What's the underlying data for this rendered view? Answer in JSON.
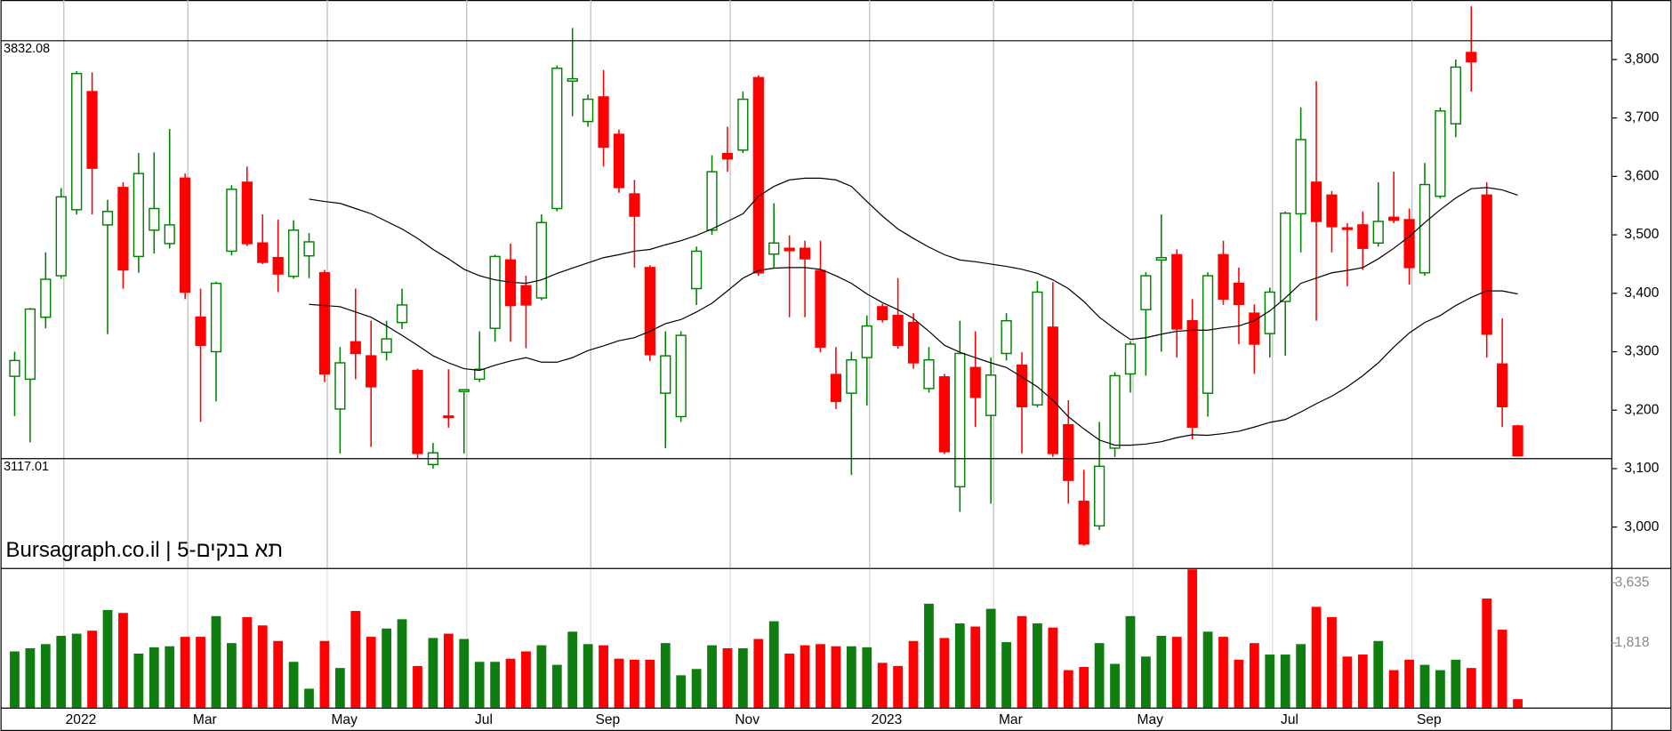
{
  "chart_data": {
    "type": "candlestick",
    "title": "Bursagraph.co.il | תא בנקים-5",
    "categories": [
      null,
      null,
      null,
      null,
      "2022",
      null,
      null,
      null,
      null,
      null,
      null,
      null,
      "Mar",
      null,
      null,
      null,
      null,
      null,
      null,
      null,
      null,
      "May",
      null,
      null,
      null,
      null,
      null,
      null,
      null,
      null,
      "Jul",
      null,
      null,
      null,
      null,
      null,
      null,
      null,
      "Sep",
      null,
      null,
      null,
      null,
      null,
      null,
      null,
      null,
      "Nov",
      null,
      null,
      null,
      null,
      null,
      null,
      null,
      null,
      "2023",
      null,
      null,
      null,
      null,
      null,
      null,
      null,
      "Mar",
      null,
      null,
      null,
      null,
      null,
      null,
      null,
      null,
      "May",
      null,
      null,
      null,
      null,
      null,
      null,
      null,
      null,
      "Jul",
      null,
      null,
      null,
      null,
      null,
      null,
      null,
      null,
      "Sep",
      null,
      null,
      null,
      null,
      null,
      null
    ],
    "open": [
      3258,
      3253,
      3359,
      3430,
      3543,
      3745,
      3517,
      3581,
      3463,
      3508,
      3485,
      3597,
      3359,
      3300,
      3472,
      3590,
      3486,
      3461,
      3429,
      3464,
      3435,
      3202,
      3317,
      3293,
      3299,
      3350,
      3268,
      3107,
      3190,
      3232,
      3253,
      3340,
      3457,
      3413,
      3392,
      3545,
      3763,
      3694,
      3736,
      3672,
      3570,
      3444,
      3229,
      3189,
      3408,
      3508,
      3639,
      3645,
      3769,
      3467,
      3477,
      3477,
      3439,
      3261,
      3229,
      3290,
      3377,
      3362,
      3350,
      3237,
      3257,
      3069,
      3273,
      3191,
      3297,
      3277,
      3209,
      3342,
      3175,
      3044,
      3002,
      3135,
      3262,
      3372,
      3457,
      3466,
      3353,
      3229,
      3466,
      3417,
      3366,
      3331,
      3386,
      3536,
      3590,
      3568,
      3512,
      3517,
      3486,
      3530,
      3526,
      3435,
      3566,
      3690,
      3812,
      3568,
      3279,
      3173
    ],
    "high": [
      3300,
      3375,
      3470,
      3580,
      3780,
      3778,
      3560,
      3590,
      3640,
      3641,
      3681,
      3605,
      3408,
      3420,
      3585,
      3617,
      3535,
      3526,
      3525,
      3503,
      3440,
      3308,
      3408,
      3353,
      3353,
      3408,
      3271,
      3144,
      3270,
      3235,
      3335,
      3466,
      3485,
      3430,
      3535,
      3790,
      3854,
      3740,
      3782,
      3680,
      3594,
      3448,
      3335,
      3335,
      3480,
      3636,
      3685,
      3745,
      3773,
      3554,
      3499,
      3490,
      3490,
      3308,
      3300,
      3362,
      3382,
      3426,
      3366,
      3308,
      3262,
      3353,
      3335,
      3290,
      3366,
      3299,
      3421,
      3419,
      3217,
      3098,
      3180,
      3265,
      3318,
      3436,
      3535,
      3475,
      3390,
      3436,
      3490,
      3444,
      3381,
      3410,
      3540,
      3718,
      3763,
      3575,
      3520,
      3540,
      3590,
      3608,
      3545,
      3623,
      3718,
      3800,
      3891,
      3590,
      3357,
      3175
    ],
    "low": [
      3190,
      3145,
      3340,
      3425,
      3535,
      3535,
      3330,
      3408,
      3435,
      3468,
      3477,
      3390,
      3180,
      3215,
      3465,
      3481,
      3450,
      3402,
      3425,
      3426,
      3248,
      3126,
      3253,
      3137,
      3285,
      3339,
      3117,
      3100,
      3170,
      3126,
      3248,
      3317,
      3317,
      3306,
      3388,
      3540,
      3703,
      3685,
      3617,
      3572,
      3444,
      3284,
      3135,
      3180,
      3380,
      3500,
      3608,
      3640,
      3430,
      3444,
      3359,
      3359,
      3299,
      3202,
      3089,
      3208,
      3350,
      3305,
      3271,
      3230,
      3125,
      3026,
      3171,
      3040,
      3285,
      3126,
      3205,
      3120,
      3040,
      2968,
      2995,
      3120,
      3230,
      3259,
      3300,
      3290,
      3150,
      3189,
      3380,
      3313,
      3262,
      3290,
      3293,
      3470,
      3353,
      3470,
      3412,
      3440,
      3480,
      3520,
      3415,
      3430,
      3562,
      3667,
      3745,
      3290,
      3171,
      3122
    ],
    "close": [
      3285,
      3373,
      3424,
      3565,
      3776,
      3614,
      3540,
      3440,
      3605,
      3545,
      3517,
      3402,
      3311,
      3417,
      3578,
      3485,
      3453,
      3433,
      3508,
      3488,
      3262,
      3281,
      3297,
      3240,
      3322,
      3380,
      3126,
      3127,
      3188,
      3235,
      3270,
      3463,
      3379,
      3380,
      3521,
      3785,
      3767,
      3732,
      3650,
      3581,
      3532,
      3295,
      3293,
      3328,
      3472,
      3608,
      3630,
      3732,
      3435,
      3486,
      3473,
      3459,
      3308,
      3215,
      3286,
      3344,
      3355,
      3311,
      3281,
      3286,
      3129,
      3297,
      3222,
      3260,
      3353,
      3206,
      3402,
      3126,
      3080,
      2971,
      3104,
      3259,
      3313,
      3430,
      3461,
      3339,
      3171,
      3430,
      3390,
      3381,
      3313,
      3402,
      3537,
      3663,
      3523,
      3514,
      3510,
      3477,
      3523,
      3525,
      3444,
      3586,
      3712,
      3787,
      3796,
      3330,
      3206,
      3122
    ],
    "up_color": "#008000",
    "down_color": "#ff0000",
    "ylim": [
      2930,
      3900
    ],
    "yticks": [
      {
        "value": 3000,
        "label": "3,000"
      },
      {
        "value": 3100,
        "label": "3,100"
      },
      {
        "value": 3200,
        "label": "3,200"
      },
      {
        "value": 3300,
        "label": "3,300"
      },
      {
        "value": 3400,
        "label": "3,400"
      },
      {
        "value": 3500,
        "label": "3,500"
      },
      {
        "value": 3600,
        "label": "3,600"
      },
      {
        "value": 3700,
        "label": "3,700"
      },
      {
        "value": 3800,
        "label": "3,800"
      }
    ],
    "reference_lines": [
      3832.08,
      3117.01
    ],
    "grid": true,
    "series": [
      {
        "color": "#000000",
        "values": [
          null,
          null,
          null,
          null,
          null,
          null,
          null,
          null,
          null,
          null,
          null,
          null,
          null,
          null,
          null,
          null,
          null,
          null,
          null,
          3561,
          3557,
          3554,
          3545,
          3536,
          3523,
          3510,
          3494,
          3475,
          3459,
          3441,
          3430,
          3423,
          3419,
          3417,
          3423,
          3434,
          3443,
          3452,
          3461,
          3466,
          3472,
          3475,
          3483,
          3490,
          3499,
          3510,
          3523,
          3536,
          3566,
          3583,
          3594,
          3597,
          3597,
          3594,
          3583,
          3557,
          3532,
          3510,
          3494,
          3479,
          3466,
          3457,
          3454,
          3450,
          3446,
          3441,
          3434,
          3423,
          3408,
          3386,
          3359,
          3339,
          3321,
          3324,
          3330,
          3335,
          3337,
          3337,
          3341,
          3344,
          3353,
          3370,
          3392,
          3417,
          3426,
          3435,
          3439,
          3444,
          3459,
          3477,
          3497,
          3521,
          3543,
          3563,
          3579,
          3581,
          3577,
          3568
        ]
      },
      {
        "color": "#000000",
        "values": [
          null,
          null,
          null,
          null,
          null,
          null,
          null,
          null,
          null,
          null,
          null,
          null,
          null,
          null,
          null,
          null,
          null,
          null,
          null,
          3381,
          3379,
          3377,
          3368,
          3359,
          3344,
          3328,
          3311,
          3293,
          3281,
          3271,
          3268,
          3277,
          3284,
          3290,
          3282,
          3282,
          3290,
          3302,
          3310,
          3319,
          3324,
          3335,
          3348,
          3355,
          3368,
          3383,
          3404,
          3426,
          3439,
          3443,
          3444,
          3444,
          3441,
          3430,
          3417,
          3399,
          3384,
          3372,
          3357,
          3335,
          3311,
          3299,
          3290,
          3281,
          3273,
          3257,
          3240,
          3217,
          3189,
          3168,
          3149,
          3140,
          3140,
          3142,
          3146,
          3153,
          3158,
          3157,
          3160,
          3164,
          3171,
          3179,
          3184,
          3197,
          3211,
          3224,
          3240,
          3259,
          3281,
          3308,
          3332,
          3350,
          3362,
          3379,
          3393,
          3404,
          3404,
          3399
        ]
      }
    ],
    "volume": {
      "values": [
        1565,
        1660,
        1785,
        2035,
        2100,
        2190,
        2815,
        2725,
        1500,
        1690,
        1720,
        2005,
        2005,
        2630,
        1815,
        2600,
        2350,
        1880,
        1250,
        440,
        1880,
        1065,
        2785,
        2005,
        2255,
        2535,
        1125,
        1970,
        2100,
        1940,
        1250,
        1250,
        1345,
        1565,
        1750,
        1160,
        2160,
        1785,
        1750,
        1345,
        1315,
        1315,
        1815,
        845,
        1035,
        1750,
        1660,
        1660,
        1940,
        2475,
        1500,
        1750,
        1785,
        1720,
        1720,
        1690,
        1220,
        1125,
        1880,
        3005,
        1970,
        2410,
        2315,
        2850,
        1845,
        2630,
        2410,
        2285,
        1000,
        1095,
        1815,
        1190,
        2630,
        1410,
        2035,
        2005,
        4040,
        2160,
        2005,
        1315,
        1815,
        1470,
        1470,
        1785,
        2910,
        2600,
        1410,
        1470,
        1880,
        1000,
        1315,
        1160,
        1000,
        1315,
        1065,
        3160,
        2220,
        125
      ],
      "ylim": [
        0,
        4050
      ],
      "yticks": [
        {
          "value": 1818,
          "label": "1,818"
        },
        {
          "value": 3635,
          "label": "3,635"
        }
      ],
      "up_color": "#0f7d0f",
      "down_color": "#ff0000"
    }
  }
}
